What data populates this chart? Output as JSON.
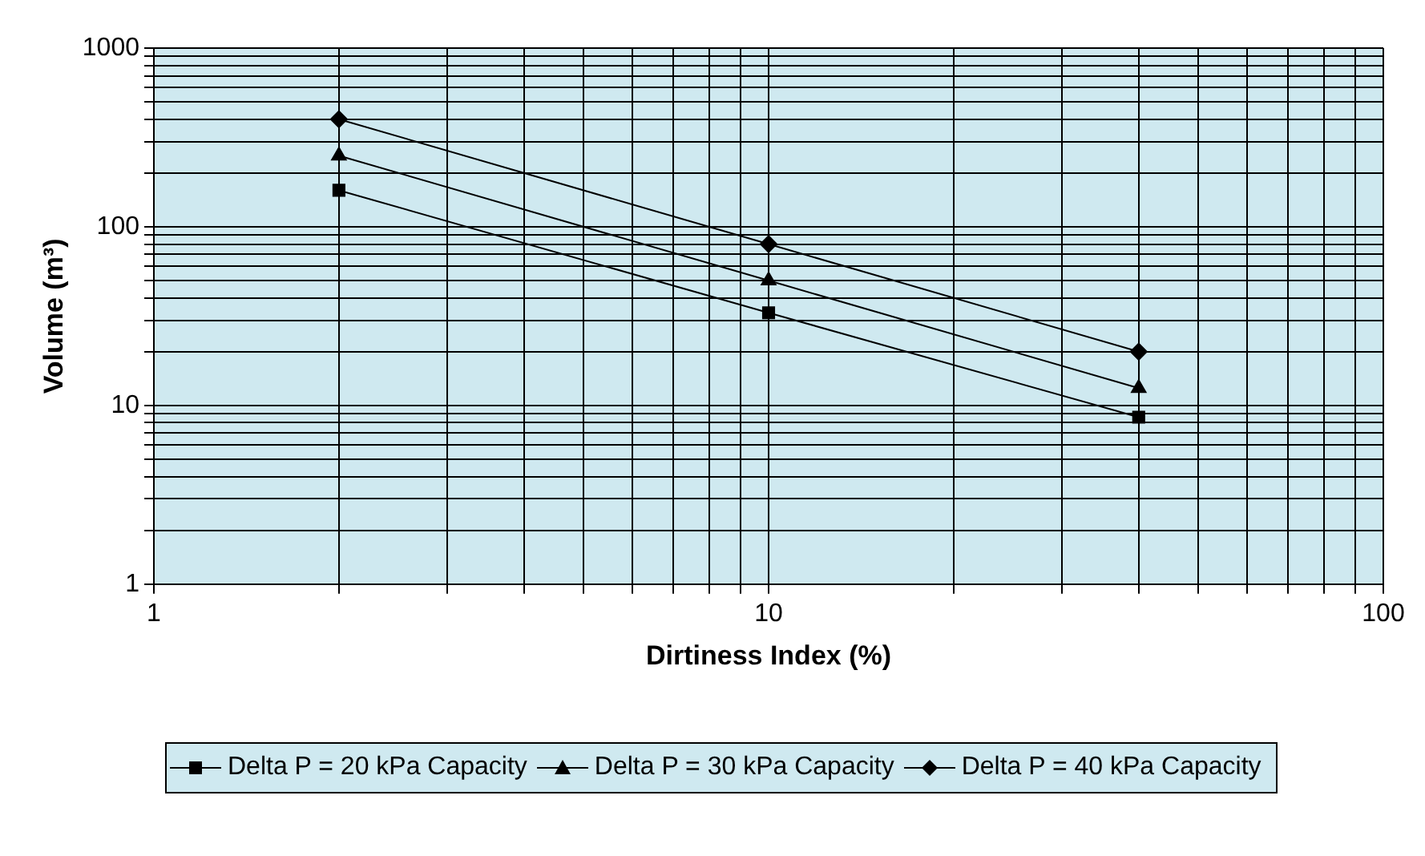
{
  "chart_data": {
    "type": "line",
    "xlabel": "Dirtiness Index (%)",
    "ylabel": "Volume (m³)",
    "x": [
      2,
      10,
      40
    ],
    "series": [
      {
        "name": "Delta P = 20 kPa Capacity",
        "color": "#000000",
        "marker": "square",
        "values": [
          160,
          33,
          8.6
        ]
      },
      {
        "name": "Delta P = 30 kPa Capacity",
        "color": "#000000",
        "marker": "triangle",
        "values": [
          250,
          50,
          12.5
        ]
      },
      {
        "name": "Delta P = 40 kPa Capacity",
        "color": "#000000",
        "marker": "diamond",
        "values": [
          400,
          80,
          20
        ]
      }
    ],
    "log": "xy",
    "xlim": [
      1,
      100
    ],
    "ylim": [
      1,
      1000
    ],
    "xticks": [
      1,
      {
        "value": 2,
        "label": null
      },
      {
        "value": 3,
        "label": null
      },
      {
        "value": 4,
        "label": null
      },
      {
        "value": 5,
        "label": null
      },
      {
        "value": 6,
        "label": null
      },
      {
        "value": 7,
        "label": null
      },
      {
        "value": 8,
        "label": null
      },
      {
        "value": 9,
        "label": null
      },
      10,
      {
        "value": 20,
        "label": null
      },
      {
        "value": 30,
        "label": null
      },
      {
        "value": 40,
        "label": null
      },
      {
        "value": 50,
        "label": null
      },
      {
        "value": 60,
        "label": null
      },
      {
        "value": 70,
        "label": null
      },
      {
        "value": 80,
        "label": null
      },
      {
        "value": 90,
        "label": null
      },
      100
    ],
    "yticks": [
      1,
      {
        "value": 2,
        "label": null
      },
      {
        "value": 3,
        "label": null
      },
      {
        "value": 4,
        "label": null
      },
      {
        "value": 5,
        "label": null
      },
      {
        "value": 6,
        "label": null
      },
      {
        "value": 7,
        "label": null
      },
      {
        "value": 8,
        "label": null
      },
      {
        "value": 9,
        "label": null
      },
      10,
      {
        "value": 20,
        "label": null
      },
      {
        "value": 30,
        "label": null
      },
      {
        "value": 40,
        "label": null
      },
      {
        "value": 50,
        "label": null
      },
      {
        "value": 60,
        "label": null
      },
      {
        "value": 70,
        "label": null
      },
      {
        "value": 80,
        "label": null
      },
      {
        "value": 90,
        "label": null
      },
      100,
      {
        "value": 200,
        "label": null
      },
      {
        "value": 300,
        "label": null
      },
      {
        "value": 400,
        "label": null
      },
      {
        "value": 500,
        "label": null
      },
      {
        "value": 600,
        "label": null
      },
      {
        "value": 700,
        "label": null
      },
      {
        "value": 800,
        "label": null
      },
      {
        "value": 900,
        "label": null
      },
      1000
    ],
    "grid": true,
    "legend": "bottom",
    "line_style": "solid"
  }
}
